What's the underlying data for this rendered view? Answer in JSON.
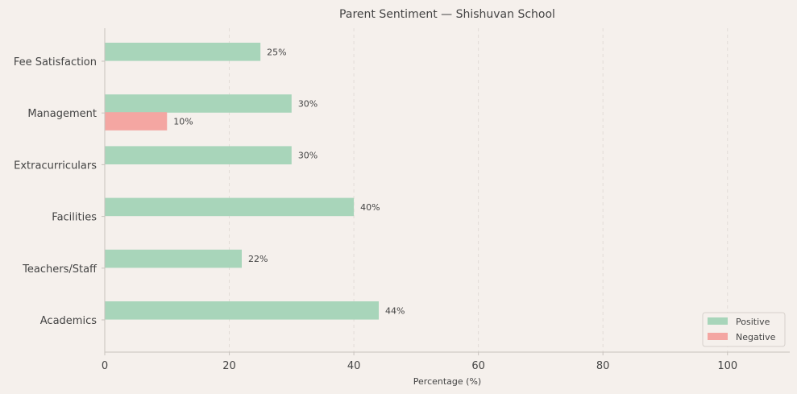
{
  "chart_data": {
    "type": "bar",
    "orientation": "horizontal",
    "title": "Parent Sentiment — Shishuvan School",
    "xlabel": "Percentage (%)",
    "ylabel": "",
    "categories": [
      "Fee Satisfaction",
      "Management",
      "Extracurriculars",
      "Facilities",
      "Teachers/Staff",
      "Academics"
    ],
    "series": [
      {
        "name": "Positive",
        "color": "#a8d5ba",
        "values": [
          25,
          30,
          30,
          40,
          22,
          44
        ]
      },
      {
        "name": "Negative",
        "color": "#f4a6a2",
        "values": [
          null,
          10,
          null,
          null,
          null,
          null
        ]
      }
    ],
    "xlim": [
      0,
      110
    ],
    "xticks": [
      0,
      20,
      40,
      60,
      80,
      100
    ],
    "value_suffix": "%",
    "grid": "x-dashed",
    "legend_position": "bottom-right"
  }
}
